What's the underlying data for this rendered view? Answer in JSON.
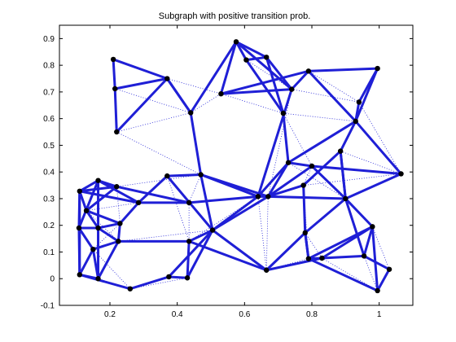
{
  "chart_data": {
    "type": "scatter",
    "title": "Subgraph with positive transition prob.",
    "xlabel": "",
    "ylabel": "",
    "xlim": [
      0.05,
      1.1
    ],
    "ylim": [
      -0.1,
      0.95
    ],
    "x_ticks": [
      0.2,
      0.4,
      0.6,
      0.8,
      1
    ],
    "x_tick_labels": [
      "0.2",
      "0.4",
      "0.6",
      "0.8",
      "1"
    ],
    "y_ticks": [
      -0.1,
      0,
      0.1,
      0.2,
      0.3,
      0.4,
      0.5,
      0.6,
      0.7,
      0.8,
      0.9
    ],
    "y_tick_labels": [
      "-0.1",
      "0",
      "0.1",
      "0.2",
      "0.3",
      "0.4",
      "0.5",
      "0.6",
      "0.7",
      "0.8",
      "0.9"
    ],
    "grid": false,
    "colors": {
      "edge": "#1f1fd6",
      "node": "#000000",
      "axis": "#000000"
    },
    "nodes": [
      [
        0.21,
        0.822
      ],
      [
        0.215,
        0.712
      ],
      [
        0.37,
        0.75
      ],
      [
        0.44,
        0.622
      ],
      [
        0.22,
        0.55
      ],
      [
        0.53,
        0.693
      ],
      [
        0.575,
        0.888
      ],
      [
        0.605,
        0.82
      ],
      [
        0.665,
        0.83
      ],
      [
        0.74,
        0.71
      ],
      [
        0.79,
        0.778
      ],
      [
        0.715,
        0.62
      ],
      [
        0.94,
        0.662
      ],
      [
        0.995,
        0.788
      ],
      [
        0.93,
        0.59
      ],
      [
        0.885,
        0.478
      ],
      [
        1.065,
        0.393
      ],
      [
        0.73,
        0.435
      ],
      [
        0.8,
        0.422
      ],
      [
        0.775,
        0.35
      ],
      [
        0.9,
        0.3
      ],
      [
        0.64,
        0.308
      ],
      [
        0.67,
        0.308
      ],
      [
        0.47,
        0.39
      ],
      [
        0.37,
        0.385
      ],
      [
        0.435,
        0.285
      ],
      [
        0.505,
        0.182
      ],
      [
        0.435,
        0.14
      ],
      [
        0.43,
        0.003
      ],
      [
        0.375,
        0.007
      ],
      [
        0.26,
        -0.038
      ],
      [
        0.285,
        0.285
      ],
      [
        0.23,
        0.207
      ],
      [
        0.225,
        0.14
      ],
      [
        0.22,
        0.345
      ],
      [
        0.165,
        0.368
      ],
      [
        0.11,
        0.328
      ],
      [
        0.13,
        0.255
      ],
      [
        0.165,
        0.19
      ],
      [
        0.108,
        0.19
      ],
      [
        0.15,
        0.11
      ],
      [
        0.11,
        0.015
      ],
      [
        0.165,
        0.0
      ],
      [
        0.78,
        0.172
      ],
      [
        0.665,
        0.032
      ],
      [
        0.79,
        0.075
      ],
      [
        0.83,
        0.077
      ],
      [
        0.98,
        0.195
      ],
      [
        0.955,
        0.085
      ],
      [
        1.03,
        0.035
      ],
      [
        0.995,
        -0.045
      ]
    ],
    "edges": [
      [
        0,
        2
      ],
      [
        1,
        2
      ],
      [
        2,
        3
      ],
      [
        0,
        1
      ],
      [
        1,
        4
      ],
      [
        3,
        23
      ],
      [
        3,
        6
      ],
      [
        3,
        2
      ],
      [
        5,
        6
      ],
      [
        6,
        7
      ],
      [
        6,
        8
      ],
      [
        7,
        8
      ],
      [
        6,
        9
      ],
      [
        5,
        10
      ],
      [
        8,
        11
      ],
      [
        8,
        9
      ],
      [
        9,
        10
      ],
      [
        10,
        13
      ],
      [
        12,
        14
      ],
      [
        13,
        14
      ],
      [
        10,
        14
      ],
      [
        7,
        11
      ],
      [
        11,
        17
      ],
      [
        14,
        15
      ],
      [
        14,
        17
      ],
      [
        15,
        20
      ],
      [
        14,
        16
      ],
      [
        16,
        18
      ],
      [
        16,
        20
      ],
      [
        15,
        19
      ],
      [
        17,
        18
      ],
      [
        18,
        20
      ],
      [
        19,
        43
      ],
      [
        20,
        43
      ],
      [
        20,
        47
      ],
      [
        20,
        48
      ],
      [
        17,
        21
      ],
      [
        18,
        22
      ],
      [
        21,
        22
      ],
      [
        22,
        23
      ],
      [
        23,
        26
      ],
      [
        21,
        26
      ],
      [
        22,
        26
      ],
      [
        23,
        24
      ],
      [
        24,
        31
      ],
      [
        24,
        26
      ],
      [
        25,
        31
      ],
      [
        25,
        21
      ],
      [
        26,
        27
      ],
      [
        26,
        28
      ],
      [
        27,
        28
      ],
      [
        27,
        33
      ],
      [
        28,
        29
      ],
      [
        29,
        30
      ],
      [
        29,
        26
      ],
      [
        31,
        32
      ],
      [
        31,
        36
      ],
      [
        32,
        33
      ],
      [
        33,
        38
      ],
      [
        34,
        35
      ],
      [
        34,
        36
      ],
      [
        34,
        37
      ],
      [
        35,
        36
      ],
      [
        35,
        39
      ],
      [
        36,
        39
      ],
      [
        36,
        37
      ],
      [
        37,
        38
      ],
      [
        38,
        39
      ],
      [
        39,
        40
      ],
      [
        39,
        41
      ],
      [
        40,
        41
      ],
      [
        40,
        42
      ],
      [
        41,
        42
      ],
      [
        42,
        33
      ],
      [
        37,
        32
      ],
      [
        38,
        32
      ],
      [
        35,
        31
      ],
      [
        34,
        25
      ],
      [
        30,
        41
      ],
      [
        33,
        40
      ],
      [
        44,
        46
      ],
      [
        43,
        44
      ],
      [
        43,
        45
      ],
      [
        45,
        46
      ],
      [
        46,
        47
      ],
      [
        47,
        48
      ],
      [
        48,
        49
      ],
      [
        49,
        50
      ],
      [
        47,
        50
      ],
      [
        45,
        47
      ],
      [
        46,
        48
      ],
      [
        45,
        50
      ],
      [
        44,
        27
      ],
      [
        21,
        23
      ],
      [
        22,
        20
      ],
      [
        22,
        19
      ],
      [
        20,
        15
      ],
      [
        21,
        9
      ],
      [
        22,
        17
      ],
      [
        44,
        26
      ],
      [
        4,
        2
      ],
      [
        5,
        9
      ],
      [
        12,
        13
      ],
      [
        43,
        45
      ],
      [
        35,
        42
      ],
      [
        36,
        41
      ]
    ],
    "weak_edges": [
      [
        4,
        3
      ],
      [
        1,
        3
      ],
      [
        0,
        4
      ],
      [
        2,
        5
      ],
      [
        3,
        5
      ],
      [
        4,
        23
      ],
      [
        23,
        25
      ],
      [
        25,
        27
      ],
      [
        24,
        27
      ],
      [
        29,
        28
      ],
      [
        21,
        27
      ],
      [
        21,
        44
      ],
      [
        22,
        44
      ],
      [
        43,
        46
      ],
      [
        16,
        15
      ],
      [
        16,
        19
      ],
      [
        18,
        19
      ],
      [
        11,
        18
      ],
      [
        17,
        20
      ],
      [
        9,
        12
      ],
      [
        12,
        16
      ],
      [
        10,
        12
      ],
      [
        7,
        9
      ],
      [
        5,
        11
      ],
      [
        32,
        34
      ],
      [
        31,
        37
      ],
      [
        33,
        37
      ],
      [
        40,
        32
      ],
      [
        30,
        40
      ],
      [
        30,
        42
      ],
      [
        28,
        30
      ],
      [
        26,
        33
      ],
      [
        19,
        45
      ],
      [
        44,
        45
      ],
      [
        48,
        50
      ],
      [
        46,
        50
      ],
      [
        49,
        47
      ],
      [
        20,
        16
      ],
      [
        11,
        14
      ],
      [
        22,
        9
      ],
      [
        24,
        25
      ],
      [
        23,
        34
      ],
      [
        2,
        4
      ]
    ]
  }
}
